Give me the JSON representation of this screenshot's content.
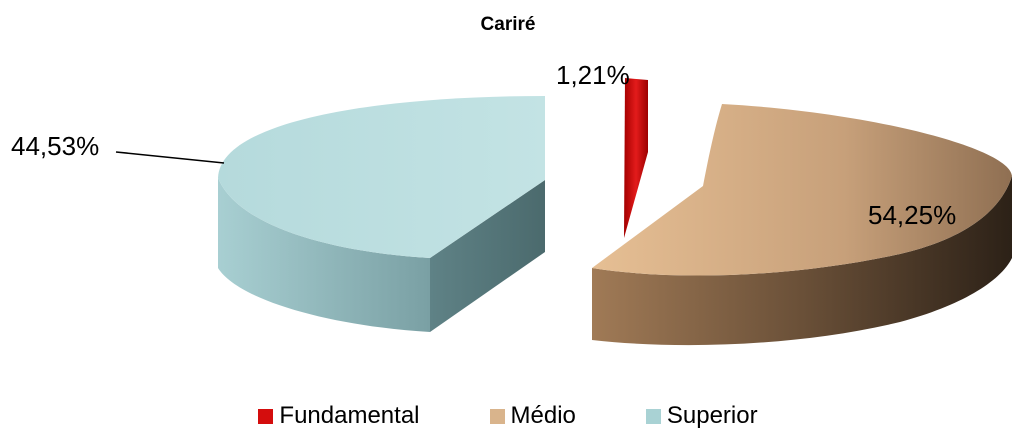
{
  "chart_data": {
    "type": "pie",
    "title": "Cariré",
    "categories": [
      "Fundamental",
      "Médio",
      "Superior"
    ],
    "values": [
      1.21,
      54.25,
      44.53
    ],
    "data_labels": [
      "1,21%",
      "54,25%",
      "44,53%"
    ],
    "colors": [
      "#d40d0d",
      "#d9b48c",
      "#a9d2d4"
    ],
    "legend_position": "bottom"
  }
}
